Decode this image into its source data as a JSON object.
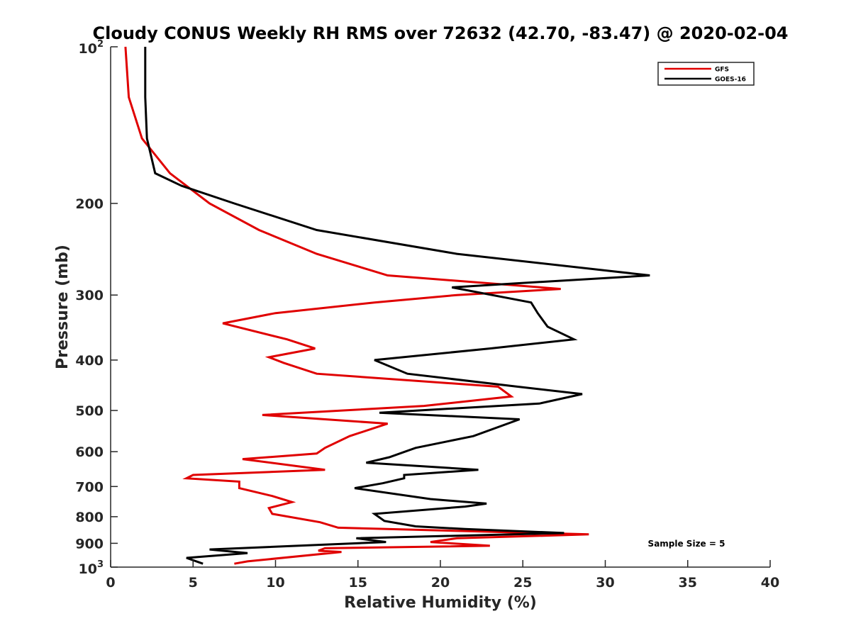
{
  "chart_data": {
    "type": "line",
    "title": "Cloudy CONUS Weekly RH RMS over 72632 (42.70, -83.47) @ 2020-02-04",
    "xlabel": "Relative Humidity (%)",
    "ylabel": "Pressure (mb)",
    "xlim": [
      0,
      40
    ],
    "ylim": [
      100,
      1000
    ],
    "y_scale": "log",
    "y_reversed": true,
    "x_ticks": [
      "0",
      "5",
      "10",
      "15",
      "20",
      "25",
      "30",
      "35",
      "40"
    ],
    "y_ticks": [
      {
        "value": 100,
        "base": "10",
        "exp": "2"
      },
      {
        "value": 200,
        "label": "200"
      },
      {
        "value": 300,
        "label": "300"
      },
      {
        "value": 400,
        "label": "400"
      },
      {
        "value": 500,
        "label": "500"
      },
      {
        "value": 600,
        "label": "600"
      },
      {
        "value": 700,
        "label": "700"
      },
      {
        "value": 800,
        "label": "800"
      },
      {
        "value": 900,
        "label": "900"
      },
      {
        "value": 1000,
        "base": "10",
        "exp": "3"
      }
    ],
    "grid": false,
    "legend_position": "top-right",
    "annotation": "Sample Size = 5",
    "series": [
      {
        "name": "GFS",
        "color": "#e00000",
        "points": [
          [
            0.9,
            100
          ],
          [
            1.1,
            125
          ],
          [
            1.9,
            150
          ],
          [
            3.6,
            175
          ],
          [
            6,
            200
          ],
          [
            9,
            225
          ],
          [
            12.5,
            250
          ],
          [
            16.8,
            275
          ],
          [
            27.3,
            292
          ],
          [
            21,
            300
          ],
          [
            16,
            310
          ],
          [
            10,
            325
          ],
          [
            6.8,
            340
          ],
          [
            10.7,
            365
          ],
          [
            12.4,
            380
          ],
          [
            9.6,
            395
          ],
          [
            10.5,
            405
          ],
          [
            12.5,
            425
          ],
          [
            23.5,
            450
          ],
          [
            24.3,
            470
          ],
          [
            19,
            490
          ],
          [
            9.2,
            510
          ],
          [
            16.8,
            530
          ],
          [
            14.5,
            560
          ],
          [
            13,
            590
          ],
          [
            12.5,
            605
          ],
          [
            8,
            620
          ],
          [
            13,
            650
          ],
          [
            5,
            665
          ],
          [
            4.6,
            675
          ],
          [
            7.8,
            685
          ],
          [
            7.8,
            705
          ],
          [
            9.8,
            730
          ],
          [
            11,
            750
          ],
          [
            9.6,
            770
          ],
          [
            9.8,
            790
          ],
          [
            12.7,
            820
          ],
          [
            13.8,
            840
          ],
          [
            29,
            865
          ],
          [
            21,
            880
          ],
          [
            19.4,
            895
          ],
          [
            23,
            910
          ],
          [
            13,
            920
          ],
          [
            12.6,
            930
          ],
          [
            14,
            935
          ],
          [
            8.3,
            975
          ],
          [
            7.5,
            985
          ]
        ]
      },
      {
        "name": "GOES-16",
        "color": "#000000",
        "points": [
          [
            2.1,
            100
          ],
          [
            2.1,
            125
          ],
          [
            2.2,
            150
          ],
          [
            2.7,
            175
          ],
          [
            4.3,
            185
          ],
          [
            7.5,
            200
          ],
          [
            12.5,
            225
          ],
          [
            21,
            250
          ],
          [
            32.7,
            275
          ],
          [
            24.5,
            285
          ],
          [
            20.7,
            290
          ],
          [
            25.5,
            310
          ],
          [
            25.9,
            325
          ],
          [
            26.5,
            345
          ],
          [
            28.1,
            365
          ],
          [
            23,
            380
          ],
          [
            16,
            400
          ],
          [
            18,
            425
          ],
          [
            24.7,
            450
          ],
          [
            28.6,
            465
          ],
          [
            26,
            485
          ],
          [
            16.3,
            505
          ],
          [
            24.8,
            520
          ],
          [
            22,
            560
          ],
          [
            18.5,
            590
          ],
          [
            16.9,
            615
          ],
          [
            15.5,
            630
          ],
          [
            22.3,
            650
          ],
          [
            17.8,
            665
          ],
          [
            17.8,
            675
          ],
          [
            16.5,
            690
          ],
          [
            14.8,
            705
          ],
          [
            19.4,
            740
          ],
          [
            22.8,
            755
          ],
          [
            21.5,
            765
          ],
          [
            16,
            790
          ],
          [
            16.6,
            815
          ],
          [
            18.5,
            835
          ],
          [
            21.5,
            845
          ],
          [
            27.5,
            860
          ],
          [
            14.9,
            880
          ],
          [
            16.7,
            895
          ],
          [
            6,
            925
          ],
          [
            8.3,
            940
          ],
          [
            4.6,
            960
          ],
          [
            5.6,
            985
          ]
        ]
      }
    ]
  }
}
